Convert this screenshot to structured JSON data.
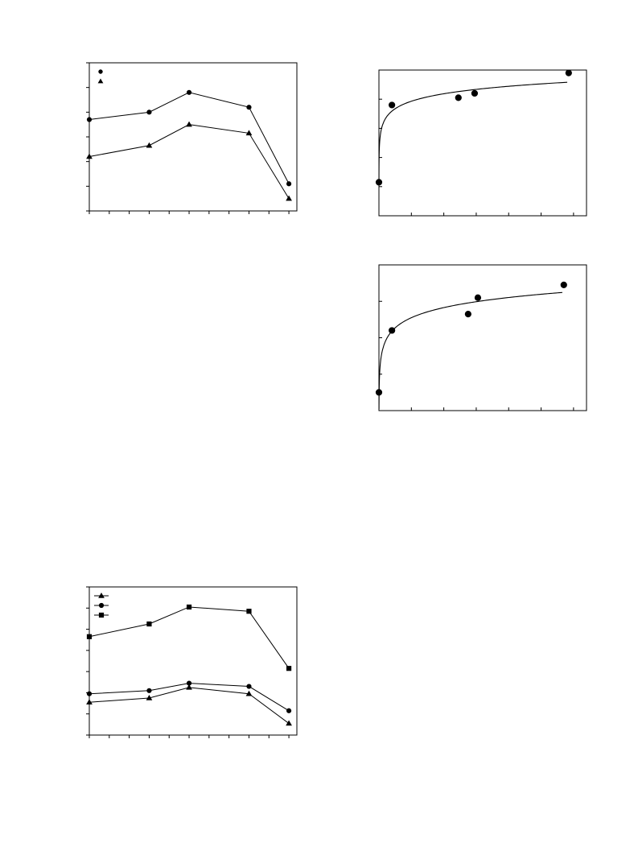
{
  "chart_data": [
    {
      "type": "line",
      "x": [
        0,
        3,
        5,
        8,
        10
      ],
      "xlim": [
        0,
        10.4
      ],
      "ylim": [
        0,
        6
      ],
      "x_ticks": [
        0,
        1,
        2,
        3,
        4,
        5,
        6,
        7,
        8,
        9,
        10
      ],
      "y_ticks": [
        0,
        1,
        2,
        3,
        4,
        5,
        6
      ],
      "legend_position": "top-left",
      "grid": false,
      "series": [
        {
          "marker": "circle",
          "values": [
            3.7,
            4.0,
            4.8,
            4.2,
            1.1
          ]
        },
        {
          "marker": "triangle",
          "values": [
            2.2,
            2.65,
            3.5,
            3.15,
            0.5
          ]
        }
      ]
    },
    {
      "type": "scatter",
      "xlim": [
        0,
        6.4
      ],
      "ylim": [
        0,
        5
      ],
      "x_ticks": [
        0,
        1,
        2,
        3,
        4,
        5,
        6
      ],
      "y_ticks": [
        0,
        1,
        2,
        3,
        4,
        5
      ],
      "grid": false,
      "points": [
        {
          "x": 0,
          "y": 1.15
        },
        {
          "x": 0.4,
          "y": 3.8
        },
        {
          "x": 2.45,
          "y": 4.05
        },
        {
          "x": 2.95,
          "y": 4.2
        },
        {
          "x": 5.85,
          "y": 4.9
        }
      ],
      "fit": {
        "type": "logarithmic",
        "a": 3.93,
        "b": 0.37
      }
    },
    {
      "type": "scatter",
      "xlim": [
        0,
        6.4
      ],
      "ylim": [
        0,
        4
      ],
      "x_ticks": [
        0,
        1,
        2,
        3,
        4,
        5,
        6
      ],
      "y_ticks": [
        0,
        1,
        2,
        3,
        4
      ],
      "grid": false,
      "points": [
        {
          "x": 0,
          "y": 0.5
        },
        {
          "x": 0.4,
          "y": 2.2
        },
        {
          "x": 2.75,
          "y": 2.65
        },
        {
          "x": 3.05,
          "y": 3.1
        },
        {
          "x": 5.7,
          "y": 3.45
        }
      ],
      "fit": {
        "type": "logarithmic",
        "a": 2.55,
        "b": 0.4
      }
    },
    {
      "type": "line",
      "x": [
        0,
        3,
        5,
        8,
        10
      ],
      "xlim": [
        0,
        10.4
      ],
      "ylim": [
        0,
        7
      ],
      "x_ticks": [
        0,
        1,
        2,
        3,
        4,
        5,
        6,
        7,
        8,
        9,
        10
      ],
      "y_ticks": [
        0,
        1,
        2,
        3,
        4,
        5,
        6,
        7
      ],
      "legend_position": "top-left",
      "grid": false,
      "series": [
        {
          "marker": "triangle",
          "values": [
            1.55,
            1.75,
            2.25,
            1.95,
            0.55
          ]
        },
        {
          "marker": "circle",
          "values": [
            1.95,
            2.1,
            2.45,
            2.3,
            1.15
          ]
        },
        {
          "marker": "square",
          "values": [
            4.65,
            5.25,
            6.05,
            5.85,
            3.15
          ]
        }
      ]
    }
  ]
}
